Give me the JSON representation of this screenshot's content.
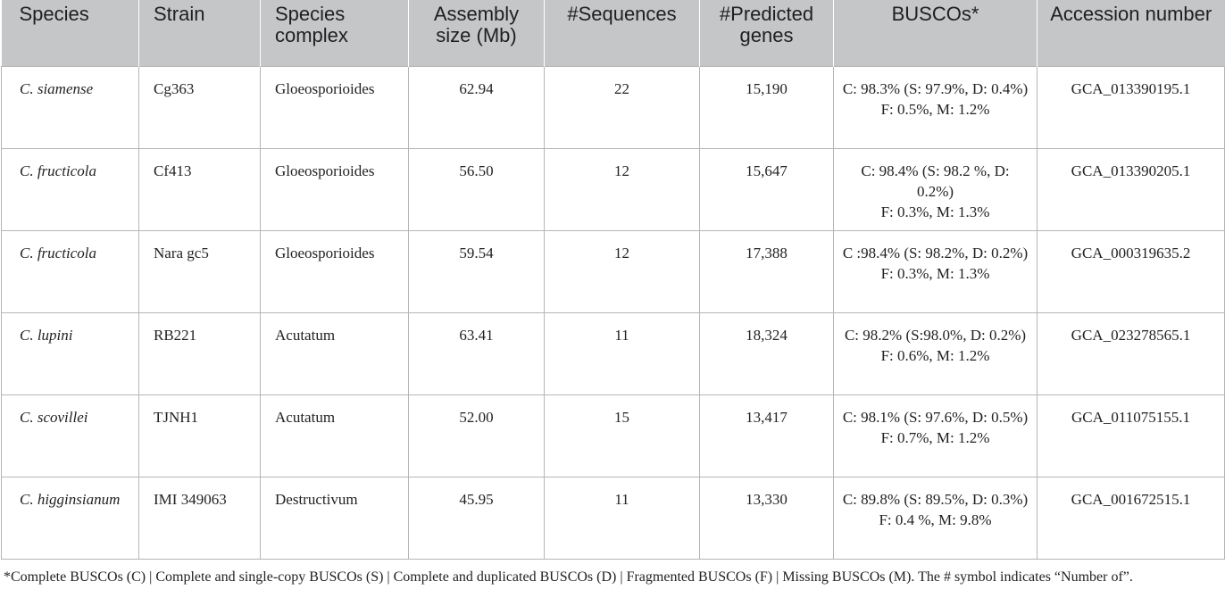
{
  "headers": [
    "Species",
    "Strain",
    "Species complex",
    "Assembly size (Mb)",
    "#Sequences",
    "#Predicted genes",
    "BUSCOs*",
    "Accession number"
  ],
  "rows": [
    {
      "species": "C. siamense",
      "strain": "Cg363",
      "complex": "Gloeosporioides",
      "assembly": "62.94",
      "sequences": "22",
      "genes": "15,190",
      "busco_c": "C: 98.3% (S: 97.9%, D: 0.4%)",
      "busco_f": "F: 0.5%, M: 1.2%",
      "accession": "GCA_013390195.1"
    },
    {
      "species": "C. fructicola",
      "strain": "Cf413",
      "complex": "Gloeosporioides",
      "assembly": "56.50",
      "sequences": "12",
      "genes": "15,647",
      "busco_c": "C: 98.4% (S: 98.2 %, D: 0.2%)",
      "busco_f": "F: 0.3%, M: 1.3%",
      "accession": "GCA_013390205.1"
    },
    {
      "species": "C. fructicola",
      "strain": "Nara gc5",
      "complex": "Gloeosporioides",
      "assembly": "59.54",
      "sequences": "12",
      "genes": "17,388",
      "busco_c": "C :98.4% (S: 98.2%, D: 0.2%)",
      "busco_f": "F: 0.3%, M: 1.3%",
      "accession": "GCA_000319635.2"
    },
    {
      "species": "C. lupini",
      "strain": "RB221",
      "complex": "Acutatum",
      "assembly": "63.41",
      "sequences": "11",
      "genes": "18,324",
      "busco_c": "C: 98.2% (S:98.0%, D: 0.2%)",
      "busco_f": "F: 0.6%, M: 1.2%",
      "accession": "GCA_023278565.1"
    },
    {
      "species": "C. scovillei",
      "strain": "TJNH1",
      "complex": "Acutatum",
      "assembly": "52.00",
      "sequences": "15",
      "genes": "13,417",
      "busco_c": "C: 98.1% (S: 97.6%, D: 0.5%)",
      "busco_f": "F: 0.7%, M: 1.2%",
      "accession": "GCA_011075155.1"
    },
    {
      "species": "C. higginsianum",
      "strain": "IMI 349063",
      "complex": "Destructivum",
      "assembly": "45.95",
      "sequences": "11",
      "genes": "13,330",
      "busco_c": "C: 89.8% (S: 89.5%, D: 0.3%)",
      "busco_f": "F: 0.4 %, M: 9.8%",
      "accession": "GCA_001672515.1"
    }
  ],
  "footnote": "*Complete BUSCOs (C) | Complete and single-copy BUSCOs (S) | Complete and duplicated BUSCOs (D) | Fragmented BUSCOs (F) | Missing BUSCOs (M). The # symbol indicates “Number of”."
}
